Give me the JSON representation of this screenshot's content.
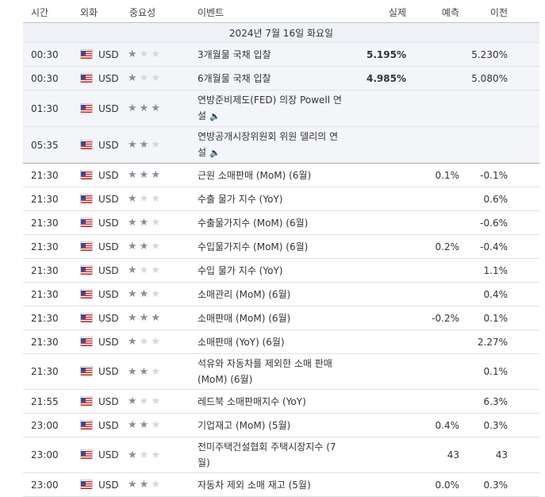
{
  "headers": {
    "time": "시간",
    "currency": "외화",
    "importance": "중요성",
    "event": "이벤트",
    "actual": "실제",
    "forecast": "예측",
    "previous": "이전"
  },
  "date_label": "2024년 7월 16일 화요일",
  "rows": [
    {
      "time": "00:30",
      "currency": "USD",
      "stars": 1,
      "event": "3개월물 국채 입찰",
      "actual": "5.195%",
      "forecast": "",
      "previous": "5.230%",
      "group": true
    },
    {
      "time": "00:30",
      "currency": "USD",
      "stars": 1,
      "event": "6개월물 국채 입찰",
      "actual": "4.985%",
      "forecast": "",
      "previous": "5.080%",
      "group": true
    },
    {
      "time": "01:30",
      "currency": "USD",
      "stars": 3,
      "event": "연방준비제도(FED) 의장 Powell 연설",
      "actual": "",
      "forecast": "",
      "previous": "",
      "group": true,
      "speech": true
    },
    {
      "time": "05:35",
      "currency": "USD",
      "stars": 2,
      "event": "연방공개시장위원회 위원 델리의 연설",
      "actual": "",
      "forecast": "",
      "previous": "",
      "group": true,
      "speech": true
    },
    {
      "time": "21:30",
      "currency": "USD",
      "stars": 3,
      "event": "근원 소매판매 (MoM) (6월)",
      "actual": "",
      "forecast": "0.1%",
      "previous": "-0.1%"
    },
    {
      "time": "21:30",
      "currency": "USD",
      "stars": 1,
      "event": "수출 물가 지수 (YoY)",
      "actual": "",
      "forecast": "",
      "previous": "0.6%"
    },
    {
      "time": "21:30",
      "currency": "USD",
      "stars": 2,
      "event": "수출물가지수 (MoM) (6월)",
      "actual": "",
      "forecast": "",
      "previous": "-0.6%"
    },
    {
      "time": "21:30",
      "currency": "USD",
      "stars": 2,
      "event": "수입물가지수 (MoM) (6월)",
      "actual": "",
      "forecast": "0.2%",
      "previous": "-0.4%"
    },
    {
      "time": "21:30",
      "currency": "USD",
      "stars": 1,
      "event": "수입 물가 지수 (YoY)",
      "actual": "",
      "forecast": "",
      "previous": "1.1%"
    },
    {
      "time": "21:30",
      "currency": "USD",
      "stars": 2,
      "event": "소매관리 (MoM) (6월)",
      "actual": "",
      "forecast": "",
      "previous": "0.4%"
    },
    {
      "time": "21:30",
      "currency": "USD",
      "stars": 3,
      "event": "소매판매 (MoM) (6월)",
      "actual": "",
      "forecast": "-0.2%",
      "previous": "0.1%"
    },
    {
      "time": "21:30",
      "currency": "USD",
      "stars": 1,
      "event": "소매판매 (YoY) (6월)",
      "actual": "",
      "forecast": "",
      "previous": "2.27%"
    },
    {
      "time": "21:30",
      "currency": "USD",
      "stars": 2,
      "event": "석유와 자동차를 제외한 소매 판매 (MoM) (6월)",
      "actual": "",
      "forecast": "",
      "previous": "0.1%"
    },
    {
      "time": "21:55",
      "currency": "USD",
      "stars": 1,
      "event": "레드북 소매판매지수 (YoY)",
      "actual": "",
      "forecast": "",
      "previous": "6.3%"
    },
    {
      "time": "23:00",
      "currency": "USD",
      "stars": 2,
      "event": "기업재고 (MoM) (5월)",
      "actual": "",
      "forecast": "0.4%",
      "previous": "0.3%"
    },
    {
      "time": "23:00",
      "currency": "USD",
      "stars": 1,
      "event": "전미주택건설협회 주택시장지수 (7월)",
      "actual": "",
      "forecast": "43",
      "previous": "43"
    },
    {
      "time": "23:00",
      "currency": "USD",
      "stars": 2,
      "event": "자동차 제외 소매 재고 (5월)",
      "actual": "",
      "forecast": "0.0%",
      "previous": "0.3%"
    }
  ],
  "icons": {
    "flag": "us-flag-icon",
    "star": "star-icon",
    "speech": "speaker-icon"
  }
}
